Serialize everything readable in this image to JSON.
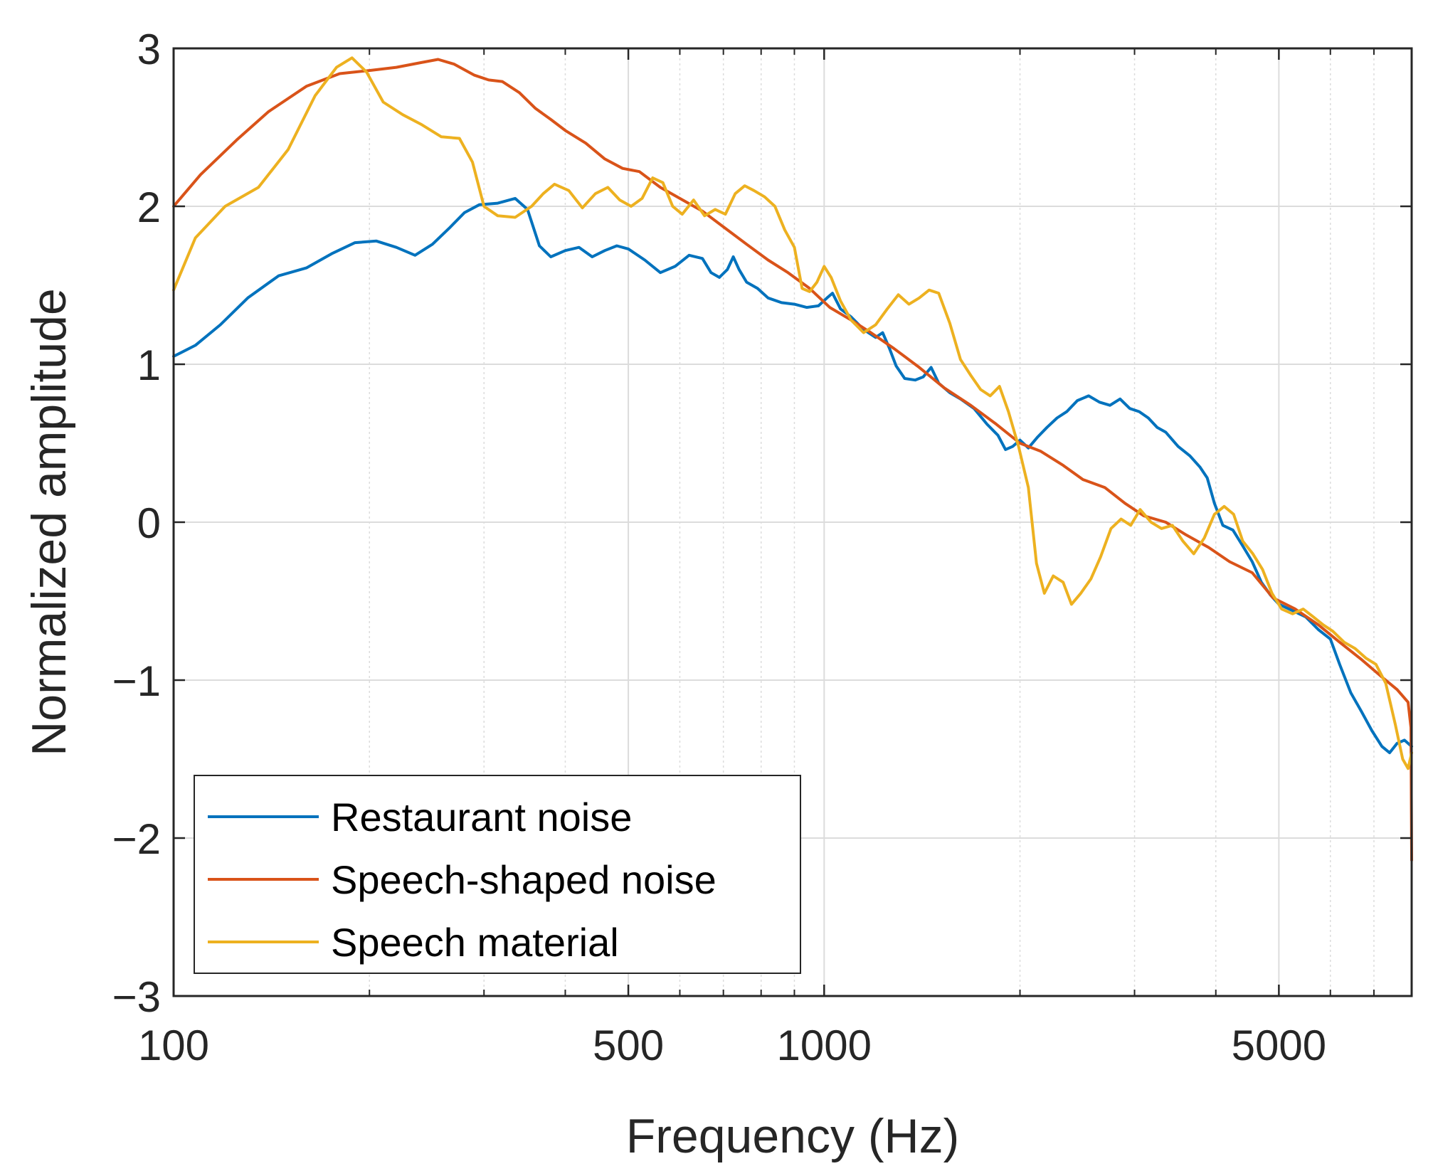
{
  "chart_data": {
    "type": "line",
    "title": "",
    "xlabel": "Frequency (Hz)",
    "ylabel": "Normalized amplitude",
    "xscale": "log",
    "xlim": [
      100,
      8000
    ],
    "ylim": [
      -3,
      3
    ],
    "xticks": [
      100,
      500,
      1000,
      5000
    ],
    "xtick_labels": [
      "100",
      "500",
      "1000",
      "5000"
    ],
    "yticks": [
      -3,
      -2,
      -1,
      0,
      1,
      2,
      3
    ],
    "ytick_labels": [
      "−3",
      "−2",
      "−1",
      "0",
      "1",
      "2",
      "3"
    ],
    "grid": true,
    "legend_position": "bottom-left",
    "series": [
      {
        "name": "Restaurant noise",
        "color": "#0072BD",
        "points": [
          [
            100,
            1.05
          ],
          [
            108,
            1.12
          ],
          [
            118,
            1.25
          ],
          [
            130,
            1.42
          ],
          [
            145,
            1.56
          ],
          [
            160,
            1.61
          ],
          [
            175,
            1.7
          ],
          [
            190,
            1.77
          ],
          [
            205,
            1.78
          ],
          [
            220,
            1.74
          ],
          [
            235,
            1.69
          ],
          [
            250,
            1.76
          ],
          [
            265,
            1.86
          ],
          [
            280,
            1.96
          ],
          [
            295,
            2.01
          ],
          [
            315,
            2.02
          ],
          [
            335,
            2.05
          ],
          [
            350,
            1.98
          ],
          [
            365,
            1.75
          ],
          [
            380,
            1.68
          ],
          [
            400,
            1.72
          ],
          [
            420,
            1.74
          ],
          [
            440,
            1.68
          ],
          [
            460,
            1.72
          ],
          [
            480,
            1.75
          ],
          [
            500,
            1.73
          ],
          [
            530,
            1.66
          ],
          [
            560,
            1.58
          ],
          [
            590,
            1.62
          ],
          [
            620,
            1.69
          ],
          [
            650,
            1.67
          ],
          [
            670,
            1.58
          ],
          [
            690,
            1.55
          ],
          [
            710,
            1.6
          ],
          [
            725,
            1.68
          ],
          [
            740,
            1.6
          ],
          [
            760,
            1.52
          ],
          [
            790,
            1.48
          ],
          [
            820,
            1.42
          ],
          [
            860,
            1.39
          ],
          [
            900,
            1.38
          ],
          [
            940,
            1.36
          ],
          [
            980,
            1.37
          ],
          [
            1010,
            1.42
          ],
          [
            1030,
            1.45
          ],
          [
            1060,
            1.35
          ],
          [
            1100,
            1.3
          ],
          [
            1150,
            1.22
          ],
          [
            1200,
            1.17
          ],
          [
            1230,
            1.2
          ],
          [
            1260,
            1.1
          ],
          [
            1290,
            0.99
          ],
          [
            1330,
            0.91
          ],
          [
            1380,
            0.9
          ],
          [
            1420,
            0.92
          ],
          [
            1460,
            0.98
          ],
          [
            1500,
            0.88
          ],
          [
            1560,
            0.82
          ],
          [
            1620,
            0.78
          ],
          [
            1700,
            0.72
          ],
          [
            1780,
            0.62
          ],
          [
            1850,
            0.55
          ],
          [
            1900,
            0.46
          ],
          [
            1950,
            0.48
          ],
          [
            2000,
            0.52
          ],
          [
            2060,
            0.47
          ],
          [
            2130,
            0.54
          ],
          [
            2200,
            0.6
          ],
          [
            2280,
            0.66
          ],
          [
            2360,
            0.7
          ],
          [
            2450,
            0.77
          ],
          [
            2550,
            0.8
          ],
          [
            2650,
            0.76
          ],
          [
            2750,
            0.74
          ],
          [
            2850,
            0.78
          ],
          [
            2950,
            0.72
          ],
          [
            3050,
            0.7
          ],
          [
            3150,
            0.66
          ],
          [
            3250,
            0.6
          ],
          [
            3350,
            0.57
          ],
          [
            3500,
            0.48
          ],
          [
            3650,
            0.42
          ],
          [
            3780,
            0.35
          ],
          [
            3880,
            0.28
          ],
          [
            3980,
            0.12
          ],
          [
            4100,
            -0.02
          ],
          [
            4250,
            -0.05
          ],
          [
            4400,
            -0.15
          ],
          [
            4550,
            -0.25
          ],
          [
            4700,
            -0.38
          ],
          [
            4850,
            -0.46
          ],
          [
            5000,
            -0.52
          ],
          [
            5250,
            -0.56
          ],
          [
            5500,
            -0.6
          ],
          [
            5750,
            -0.68
          ],
          [
            6000,
            -0.74
          ],
          [
            6200,
            -0.9
          ],
          [
            6450,
            -1.08
          ],
          [
            6700,
            -1.2
          ],
          [
            6950,
            -1.32
          ],
          [
            7200,
            -1.42
          ],
          [
            7400,
            -1.46
          ],
          [
            7600,
            -1.4
          ],
          [
            7800,
            -1.38
          ],
          [
            8000,
            -1.42
          ]
        ]
      },
      {
        "name": "Speech-shaped noise",
        "color": "#D95319",
        "points": [
          [
            100,
            2.0
          ],
          [
            110,
            2.2
          ],
          [
            125,
            2.42
          ],
          [
            140,
            2.6
          ],
          [
            160,
            2.76
          ],
          [
            180,
            2.84
          ],
          [
            200,
            2.86
          ],
          [
            220,
            2.88
          ],
          [
            240,
            2.91
          ],
          [
            255,
            2.93
          ],
          [
            270,
            2.9
          ],
          [
            290,
            2.83
          ],
          [
            305,
            2.8
          ],
          [
            320,
            2.79
          ],
          [
            340,
            2.72
          ],
          [
            360,
            2.62
          ],
          [
            380,
            2.55
          ],
          [
            400,
            2.48
          ],
          [
            430,
            2.4
          ],
          [
            460,
            2.3
          ],
          [
            490,
            2.24
          ],
          [
            520,
            2.22
          ],
          [
            560,
            2.12
          ],
          [
            600,
            2.05
          ],
          [
            650,
            1.97
          ],
          [
            700,
            1.87
          ],
          [
            760,
            1.76
          ],
          [
            820,
            1.66
          ],
          [
            880,
            1.58
          ],
          [
            950,
            1.48
          ],
          [
            1020,
            1.36
          ],
          [
            1100,
            1.28
          ],
          [
            1180,
            1.2
          ],
          [
            1280,
            1.1
          ],
          [
            1400,
            0.98
          ],
          [
            1530,
            0.85
          ],
          [
            1680,
            0.74
          ],
          [
            1840,
            0.62
          ],
          [
            2000,
            0.5
          ],
          [
            2150,
            0.45
          ],
          [
            2330,
            0.36
          ],
          [
            2500,
            0.27
          ],
          [
            2700,
            0.22
          ],
          [
            2900,
            0.12
          ],
          [
            3100,
            0.04
          ],
          [
            3350,
            0.0
          ],
          [
            3600,
            -0.08
          ],
          [
            3900,
            -0.16
          ],
          [
            4200,
            -0.25
          ],
          [
            4550,
            -0.32
          ],
          [
            4900,
            -0.48
          ],
          [
            5300,
            -0.55
          ],
          [
            5750,
            -0.65
          ],
          [
            6200,
            -0.76
          ],
          [
            6700,
            -0.87
          ],
          [
            7200,
            -0.98
          ],
          [
            7600,
            -1.06
          ],
          [
            7900,
            -1.14
          ],
          [
            7980,
            -1.3
          ],
          [
            8000,
            -2.14
          ]
        ]
      },
      {
        "name": "Speech material",
        "color": "#EDB120",
        "points": [
          [
            100,
            1.47
          ],
          [
            108,
            1.8
          ],
          [
            120,
            2.0
          ],
          [
            135,
            2.12
          ],
          [
            150,
            2.36
          ],
          [
            165,
            2.7
          ],
          [
            178,
            2.88
          ],
          [
            188,
            2.94
          ],
          [
            198,
            2.85
          ],
          [
            210,
            2.66
          ],
          [
            225,
            2.58
          ],
          [
            240,
            2.52
          ],
          [
            258,
            2.44
          ],
          [
            275,
            2.43
          ],
          [
            288,
            2.28
          ],
          [
            300,
            2.0
          ],
          [
            315,
            1.94
          ],
          [
            335,
            1.93
          ],
          [
            355,
            2.0
          ],
          [
            370,
            2.08
          ],
          [
            385,
            2.14
          ],
          [
            405,
            2.1
          ],
          [
            425,
            1.99
          ],
          [
            445,
            2.08
          ],
          [
            465,
            2.12
          ],
          [
            485,
            2.04
          ],
          [
            505,
            2.0
          ],
          [
            525,
            2.05
          ],
          [
            545,
            2.18
          ],
          [
            565,
            2.15
          ],
          [
            585,
            2.0
          ],
          [
            605,
            1.95
          ],
          [
            630,
            2.04
          ],
          [
            655,
            1.94
          ],
          [
            680,
            1.98
          ],
          [
            705,
            1.95
          ],
          [
            730,
            2.08
          ],
          [
            755,
            2.13
          ],
          [
            780,
            2.1
          ],
          [
            810,
            2.06
          ],
          [
            840,
            2.0
          ],
          [
            870,
            1.85
          ],
          [
            900,
            1.74
          ],
          [
            925,
            1.48
          ],
          [
            950,
            1.46
          ],
          [
            975,
            1.52
          ],
          [
            1000,
            1.62
          ],
          [
            1025,
            1.55
          ],
          [
            1060,
            1.4
          ],
          [
            1100,
            1.28
          ],
          [
            1150,
            1.2
          ],
          [
            1200,
            1.25
          ],
          [
            1250,
            1.35
          ],
          [
            1300,
            1.44
          ],
          [
            1350,
            1.38
          ],
          [
            1400,
            1.42
          ],
          [
            1450,
            1.47
          ],
          [
            1500,
            1.45
          ],
          [
            1560,
            1.26
          ],
          [
            1620,
            1.03
          ],
          [
            1680,
            0.93
          ],
          [
            1740,
            0.84
          ],
          [
            1800,
            0.8
          ],
          [
            1860,
            0.86
          ],
          [
            1920,
            0.7
          ],
          [
            1990,
            0.48
          ],
          [
            2060,
            0.22
          ],
          [
            2120,
            -0.26
          ],
          [
            2180,
            -0.45
          ],
          [
            2250,
            -0.34
          ],
          [
            2330,
            -0.38
          ],
          [
            2400,
            -0.52
          ],
          [
            2480,
            -0.45
          ],
          [
            2570,
            -0.36
          ],
          [
            2660,
            -0.22
          ],
          [
            2760,
            -0.04
          ],
          [
            2860,
            0.02
          ],
          [
            2960,
            -0.02
          ],
          [
            3060,
            0.08
          ],
          [
            3180,
            0.0
          ],
          [
            3300,
            -0.04
          ],
          [
            3430,
            -0.02
          ],
          [
            3560,
            -0.12
          ],
          [
            3700,
            -0.2
          ],
          [
            3840,
            -0.1
          ],
          [
            3980,
            0.05
          ],
          [
            4120,
            0.1
          ],
          [
            4260,
            0.05
          ],
          [
            4400,
            -0.12
          ],
          [
            4560,
            -0.2
          ],
          [
            4720,
            -0.3
          ],
          [
            4880,
            -0.45
          ],
          [
            5050,
            -0.55
          ],
          [
            5250,
            -0.58
          ],
          [
            5450,
            -0.55
          ],
          [
            5650,
            -0.6
          ],
          [
            5850,
            -0.65
          ],
          [
            6050,
            -0.69
          ],
          [
            6300,
            -0.76
          ],
          [
            6550,
            -0.8
          ],
          [
            6800,
            -0.86
          ],
          [
            7050,
            -0.9
          ],
          [
            7300,
            -1.02
          ],
          [
            7550,
            -1.28
          ],
          [
            7750,
            -1.5
          ],
          [
            7900,
            -1.56
          ],
          [
            8000,
            -1.46
          ]
        ]
      }
    ]
  }
}
